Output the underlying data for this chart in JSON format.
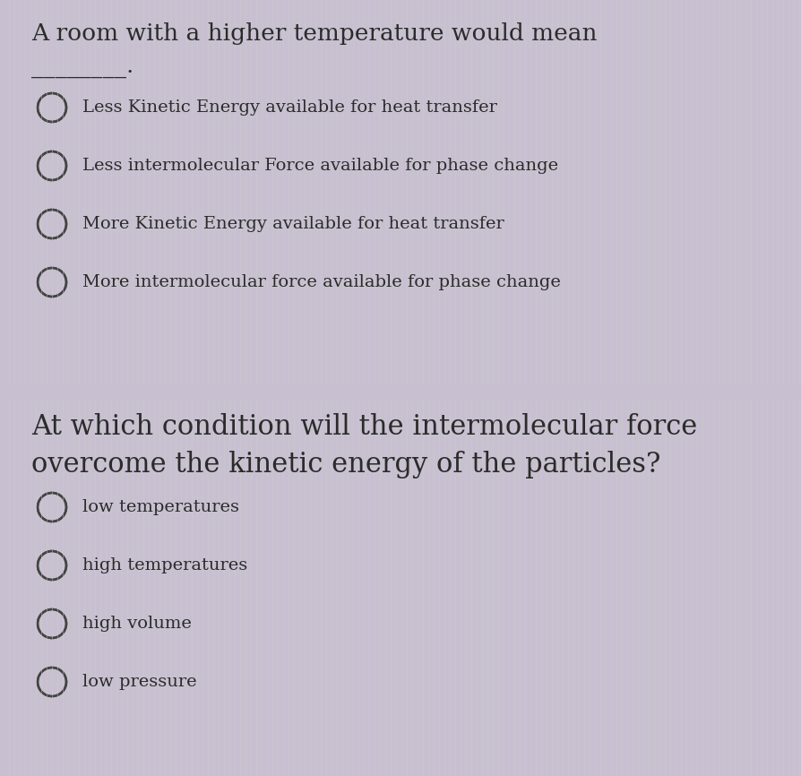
{
  "bg_color": "#c8c0d0",
  "panel_bg": "#d8d8d8",
  "panel_bg2": "#d0d0d8",
  "separator_color": "#c0b8cc",
  "q1_title_line1": "A room with a higher temperature would mean",
  "q1_title_line2": "________.",
  "q1_options": [
    "Less Kinetic Energy available for heat transfer",
    "Less intermolecular Force available for phase change",
    "More Kinetic Energy available for heat transfer",
    "More intermolecular force available for phase change"
  ],
  "q1_title_fontsize": 19,
  "q1_option_fontsize": 14,
  "q2_title_line1": "At which condition will the intermolecular force",
  "q2_title_line2": "overcome the kinetic energy of the particles?",
  "q2_options": [
    "low temperatures",
    "high temperatures",
    "high volume",
    "low pressure"
  ],
  "q2_title_fontsize": 22,
  "q2_option_fontsize": 14,
  "text_color": "#2b2b2b",
  "circle_edge_color": "#444444",
  "stripe_color": "#cccccc",
  "left_strip_color": "#b8a8c8",
  "underline_color": "#333333"
}
